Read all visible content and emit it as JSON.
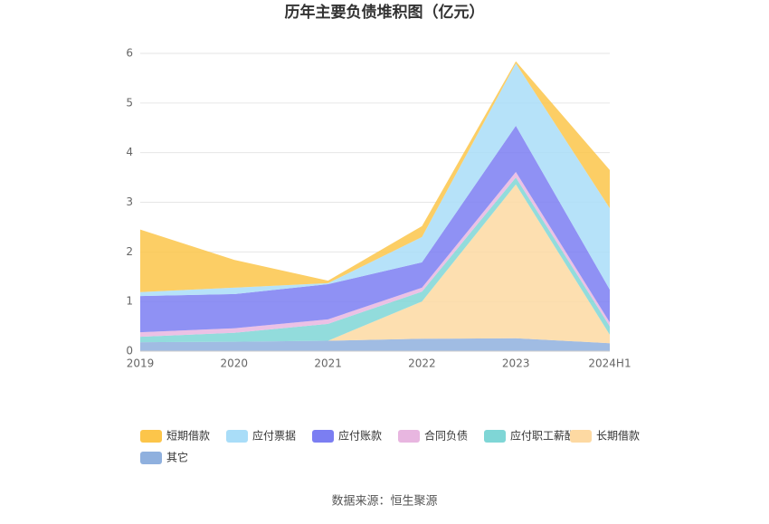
{
  "chart_data": {
    "type": "area",
    "stacked": true,
    "title": "历年主要负债堆积图（亿元）",
    "source": "数据来源：恒生聚源",
    "categories": [
      "2019",
      "2020",
      "2021",
      "2022",
      "2023",
      "2024H1"
    ],
    "ylim": [
      0,
      6
    ],
    "yticks": [
      0,
      1,
      2,
      3,
      4,
      5,
      6
    ],
    "grid": true,
    "series": [
      {
        "name": "其它",
        "color": "#8fb0de",
        "values": [
          0.18,
          0.19,
          0.21,
          0.25,
          0.26,
          0.16
        ]
      },
      {
        "name": "长期借款",
        "color": "#fdd9a2",
        "values": [
          0,
          0,
          0,
          0.75,
          3.1,
          0.17
        ]
      },
      {
        "name": "应付职工薪酬",
        "color": "#7fd6d6",
        "values": [
          0.11,
          0.18,
          0.34,
          0.2,
          0.14,
          0.17
        ]
      },
      {
        "name": "合同负债",
        "color": "#e8b6e0",
        "values": [
          0.09,
          0.09,
          0.09,
          0.08,
          0.11,
          0.08
        ]
      },
      {
        "name": "应付账款",
        "color": "#7b7ef2",
        "values": [
          0.73,
          0.69,
          0.71,
          0.51,
          0.93,
          0.66
        ]
      },
      {
        "name": "应付票据",
        "color": "#a9ddf8",
        "values": [
          0.08,
          0.13,
          0.02,
          0.51,
          1.26,
          1.64
        ]
      },
      {
        "name": "短期借款",
        "color": "#fcc54a",
        "values": [
          1.26,
          0.56,
          0.05,
          0.22,
          0.04,
          0.77
        ]
      }
    ],
    "legend_order": [
      6,
      5,
      4,
      3,
      2,
      1,
      0
    ]
  }
}
